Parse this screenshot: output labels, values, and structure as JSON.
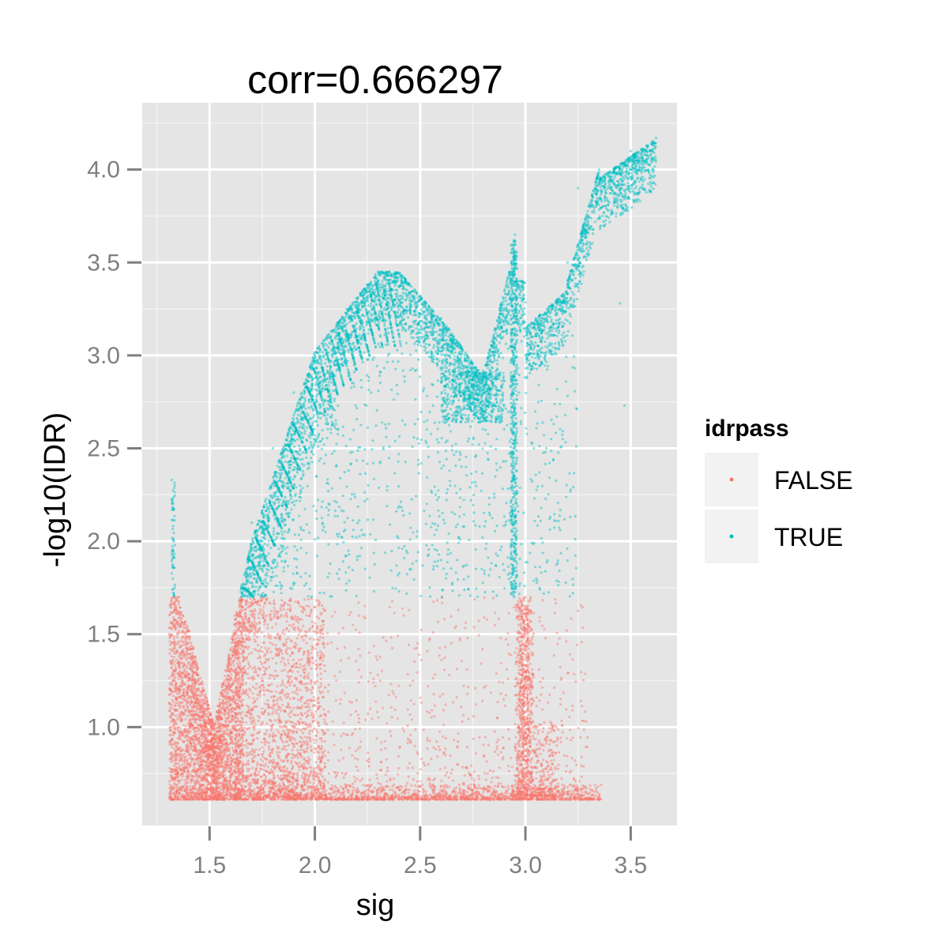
{
  "chart_data": {
    "type": "scatter",
    "title": "corr=0.666297",
    "xlabel": "sig",
    "ylabel": "-log10(IDR)",
    "xlim": [
      1.18,
      3.72
    ],
    "ylim": [
      0.47,
      4.36
    ],
    "x_ticks": [
      1.5,
      2.0,
      2.5,
      3.0,
      3.5
    ],
    "x_tick_labels": [
      "1.5",
      "2.0",
      "2.5",
      "3.0",
      "3.5"
    ],
    "y_ticks": [
      1.0,
      1.5,
      2.0,
      2.5,
      3.0,
      3.5,
      4.0
    ],
    "y_tick_labels": [
      "1.0",
      "1.5",
      "2.0",
      "2.5",
      "3.0",
      "3.5",
      "4.0"
    ],
    "grid": true,
    "threshold": 1.7,
    "legend": {
      "title": "idrpass",
      "placement": "right",
      "entries": [
        {
          "label": "FALSE",
          "color": "#F8766D"
        },
        {
          "label": "TRUE",
          "color": "#00BFC4"
        }
      ]
    },
    "series": [
      {
        "name": "FALSE",
        "color": "#F8766D",
        "points": [
          [
            1.32,
            0.62
          ],
          [
            1.34,
            1.68
          ],
          [
            1.35,
            1.55
          ],
          [
            1.38,
            1.4
          ],
          [
            1.4,
            1.2
          ],
          [
            1.45,
            1.05
          ],
          [
            1.5,
            0.85
          ],
          [
            1.55,
            0.7
          ],
          [
            1.58,
            1.3
          ],
          [
            1.62,
            1.6
          ],
          [
            1.65,
            1.68
          ],
          [
            1.7,
            1.4
          ],
          [
            1.75,
            1.1
          ],
          [
            1.8,
            0.95
          ],
          [
            1.9,
            0.85
          ],
          [
            2.0,
            0.78
          ],
          [
            2.2,
            0.72
          ],
          [
            2.5,
            0.68
          ],
          [
            2.75,
            0.66
          ],
          [
            2.95,
            1.4
          ],
          [
            2.97,
            1.0
          ],
          [
            3.0,
            0.8
          ],
          [
            3.1,
            0.68
          ],
          [
            3.2,
            0.64
          ],
          [
            3.3,
            0.64
          ],
          [
            3.35,
            0.63
          ]
        ]
      },
      {
        "name": "TRUE",
        "color": "#00BFC4",
        "points": [
          [
            1.32,
            2.33
          ],
          [
            1.33,
            2.0
          ],
          [
            1.65,
            1.75
          ],
          [
            1.7,
            2.1
          ],
          [
            1.8,
            2.5
          ],
          [
            1.9,
            2.8
          ],
          [
            2.0,
            3.0
          ],
          [
            2.15,
            3.25
          ],
          [
            2.3,
            3.45
          ],
          [
            2.35,
            3.43
          ],
          [
            2.5,
            3.3
          ],
          [
            2.6,
            3.2
          ],
          [
            2.7,
            2.9
          ],
          [
            2.75,
            2.75
          ],
          [
            2.85,
            3.0
          ],
          [
            2.95,
            3.65
          ],
          [
            2.97,
            2.8
          ],
          [
            3.05,
            3.2
          ],
          [
            3.15,
            3.3
          ],
          [
            3.2,
            3.5
          ],
          [
            3.25,
            3.9
          ],
          [
            3.35,
            4.0
          ],
          [
            3.5,
            4.1
          ],
          [
            3.62,
            4.17
          ],
          [
            3.45,
            3.28
          ],
          [
            3.47,
            2.73
          ]
        ]
      }
    ]
  }
}
